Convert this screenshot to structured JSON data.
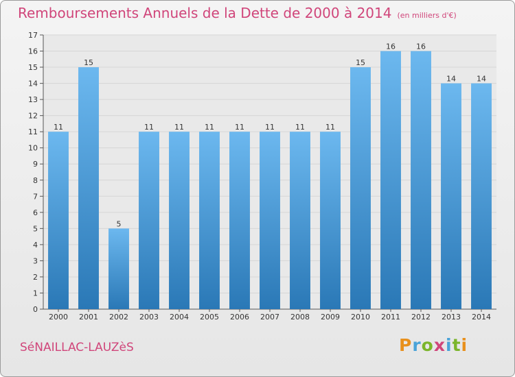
{
  "header": {
    "title": "Remboursements Annuels de la Dette de 2000 à 2014",
    "subtitle": "(en milliers d'€)"
  },
  "footer": {
    "commune": "SéNAILLAC-LAUZèS",
    "logo": [
      "P",
      "r",
      "o",
      "x",
      "i",
      "t",
      "i"
    ],
    "logo_colors": [
      "#e8901c",
      "#4aa3d8",
      "#7bb52b",
      "#d0457a",
      "#4aa3d8",
      "#7bb52b",
      "#e8901c"
    ]
  },
  "chart_data": {
    "type": "bar",
    "categories": [
      "2000",
      "2001",
      "2002",
      "2003",
      "2004",
      "2005",
      "2006",
      "2007",
      "2008",
      "2009",
      "2010",
      "2011",
      "2012",
      "2013",
      "2014"
    ],
    "values": [
      11,
      15,
      5,
      11,
      11,
      11,
      11,
      11,
      11,
      11,
      15,
      16,
      16,
      14,
      14
    ],
    "value_labels": [
      "11",
      "15",
      "5",
      "11",
      "11",
      "11",
      "11",
      "11",
      "11",
      "11",
      "15",
      "16",
      "16",
      "14",
      "14"
    ],
    "yticks": [
      0,
      1,
      2,
      3,
      4,
      5,
      6,
      7,
      8,
      9,
      10,
      11,
      12,
      13,
      14,
      15,
      16,
      17
    ],
    "ylim": [
      0,
      17
    ],
    "grid": true,
    "bar_color_top": "#6cb8ef",
    "bar_color_bottom": "#2a78b6"
  }
}
